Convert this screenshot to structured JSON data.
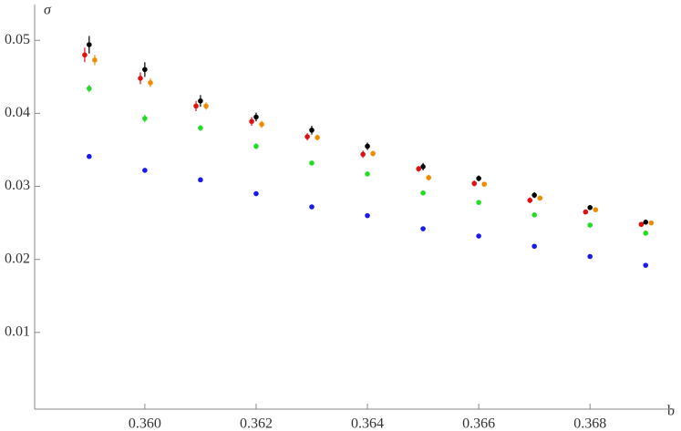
{
  "chart_data": {
    "type": "scatter",
    "x_label": "b",
    "y_label": "σ",
    "xlim": [
      0.35802,
      0.36952
    ],
    "ylim": [
      -0.0005,
      0.0549
    ],
    "xticks": [
      {
        "value": 0.36,
        "label": "0.360"
      },
      {
        "value": 0.362,
        "label": "0.362"
      },
      {
        "value": 0.364,
        "label": "0.364"
      },
      {
        "value": 0.366,
        "label": "0.366"
      },
      {
        "value": 0.368,
        "label": "0.368"
      }
    ],
    "yticks": [
      0.01,
      0.02,
      0.03,
      0.04,
      0.05
    ],
    "series": [
      {
        "color": "#e01010",
        "x": [
          0.35892,
          0.35992,
          0.36092,
          0.36192,
          0.36292,
          0.36392,
          0.36492,
          0.36592,
          0.36692,
          0.36792,
          0.36892
        ],
        "values": [
          0.048,
          0.0448,
          0.041,
          0.0389,
          0.0368,
          0.0344,
          0.0324,
          0.0304,
          0.0281,
          0.0265,
          0.0248
        ],
        "errors": [
          0.001,
          0.0008,
          0.0007,
          0.0006,
          0.0005,
          0.0005,
          0.0004,
          0.0004,
          0.0004,
          0.0003,
          0.0003
        ]
      },
      {
        "color": "#000000",
        "x": [
          0.359,
          0.36,
          0.361,
          0.362,
          0.363,
          0.364,
          0.365,
          0.366,
          0.367,
          0.368,
          0.369
        ],
        "values": [
          0.0494,
          0.046,
          0.0417,
          0.0395,
          0.0377,
          0.0355,
          0.0327,
          0.0311,
          0.0288,
          0.0271,
          0.0251
        ],
        "errors": [
          0.0012,
          0.001,
          0.0008,
          0.0006,
          0.0006,
          0.0005,
          0.0005,
          0.0004,
          0.0004,
          0.0003,
          0.0003
        ]
      },
      {
        "color": "#f08c00",
        "x": [
          0.3591,
          0.3601,
          0.3611,
          0.3621,
          0.3631,
          0.3641,
          0.3651,
          0.3661,
          0.3671,
          0.3681,
          0.3691
        ],
        "values": [
          0.0473,
          0.0442,
          0.041,
          0.0385,
          0.0367,
          0.0345,
          0.0312,
          0.0303,
          0.0284,
          0.0268,
          0.025
        ],
        "errors": [
          0.0007,
          0.0006,
          0.0005,
          0.0005,
          0.0004,
          0.0004,
          0.0004,
          0.0003,
          0.0003,
          0.0003,
          0.0002
        ]
      },
      {
        "color": "#22dd22",
        "x": [
          0.359,
          0.36,
          0.361,
          0.362,
          0.363,
          0.364,
          0.365,
          0.366,
          0.367,
          0.368,
          0.369
        ],
        "values": [
          0.0434,
          0.0393,
          0.038,
          0.0355,
          0.0332,
          0.0317,
          0.0291,
          0.0278,
          0.0261,
          0.0247,
          0.0236
        ],
        "errors": [
          0.0005,
          0.0005,
          0.0004,
          0.0004,
          0.0003,
          0.0003,
          0.0003,
          0.0002,
          0.0002,
          0.0002,
          0.0002
        ]
      },
      {
        "color": "#1a1aee",
        "x": [
          0.359,
          0.36,
          0.361,
          0.362,
          0.363,
          0.364,
          0.365,
          0.366,
          0.367,
          0.368,
          0.369
        ],
        "values": [
          0.0341,
          0.0322,
          0.0309,
          0.029,
          0.0272,
          0.026,
          0.0242,
          0.0232,
          0.0218,
          0.0204,
          0.0192
        ],
        "errors": [
          0.0003,
          0.0003,
          0.0002,
          0.0002,
          0.0002,
          0.0002,
          0.0002,
          0.0001,
          0.0001,
          0.0001,
          0.0001
        ]
      }
    ]
  }
}
